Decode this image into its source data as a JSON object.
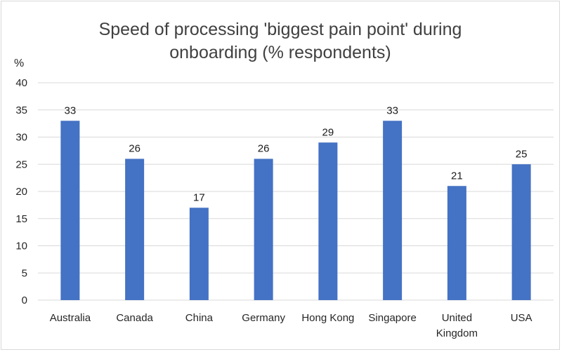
{
  "chart_data": {
    "type": "bar",
    "title_lines": [
      "Speed of processing 'biggest pain point' during",
      "onboarding (% respondents)"
    ],
    "ylabel": "%",
    "xlabel": "",
    "categories": [
      [
        "Australia"
      ],
      [
        "Canada"
      ],
      [
        "China"
      ],
      [
        "Germany"
      ],
      [
        "Hong Kong"
      ],
      [
        "Singapore"
      ],
      [
        "United",
        "Kingdom"
      ],
      [
        "USA"
      ]
    ],
    "values": [
      33,
      26,
      17,
      26,
      29,
      33,
      21,
      25
    ],
    "data_labels": [
      "33",
      "26",
      "17",
      "26",
      "29",
      "33",
      "21",
      "25"
    ],
    "yticks": [
      "0",
      "5",
      "10",
      "15",
      "20",
      "25",
      "30",
      "35",
      "40"
    ],
    "ylim": [
      0,
      40
    ],
    "grid": true,
    "legend": "none",
    "bar_color": "#4472c4"
  }
}
